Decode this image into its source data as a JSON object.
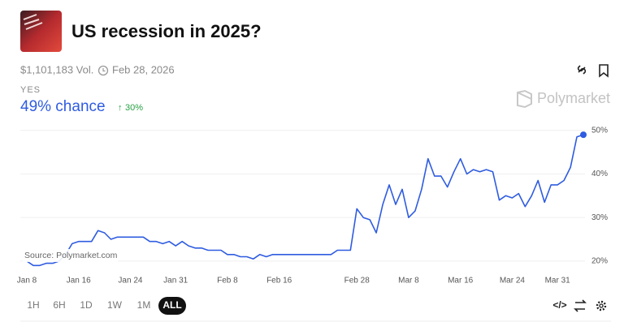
{
  "header": {
    "title": "US recession in 2025?",
    "volume": "$1,101,183 Vol.",
    "end_date": "Feb 28, 2026"
  },
  "outcome": {
    "label": "YES",
    "chance": "49% chance",
    "change": "30%"
  },
  "brand": "Polymarket",
  "source": "Source: Polymarket.com",
  "ranges": [
    "1H",
    "6H",
    "1D",
    "1W",
    "1M",
    "ALL"
  ],
  "chart_data": {
    "type": "line",
    "x": [
      "Jan 8",
      "Jan 9",
      "Jan 10",
      "Jan 11",
      "Jan 12",
      "Jan 13",
      "Jan 14",
      "Jan 15",
      "Jan 16",
      "Jan 17",
      "Jan 18",
      "Jan 19",
      "Jan 20",
      "Jan 21",
      "Jan 22",
      "Jan 23",
      "Jan 24",
      "Jan 25",
      "Jan 26",
      "Jan 27",
      "Jan 28",
      "Jan 29",
      "Jan 30",
      "Jan 31",
      "Feb 1",
      "Feb 2",
      "Feb 3",
      "Feb 4",
      "Feb 5",
      "Feb 6",
      "Feb 7",
      "Feb 8",
      "Feb 9",
      "Feb 10",
      "Feb 11",
      "Feb 12",
      "Feb 13",
      "Feb 14",
      "Feb 15",
      "Feb 16",
      "Feb 17",
      "Feb 18",
      "Feb 19",
      "Feb 20",
      "Feb 21",
      "Feb 22",
      "Feb 23",
      "Feb 24",
      "Feb 25",
      "Feb 26",
      "Feb 27",
      "Feb 28",
      "Mar 1",
      "Mar 2",
      "Mar 3",
      "Mar 4",
      "Mar 5",
      "Mar 6",
      "Mar 7",
      "Mar 8",
      "Mar 9",
      "Mar 10",
      "Mar 11",
      "Mar 12",
      "Mar 13",
      "Mar 14",
      "Mar 15",
      "Mar 16",
      "Mar 17",
      "Mar 18",
      "Mar 19",
      "Mar 20",
      "Mar 21",
      "Mar 22",
      "Mar 23",
      "Mar 24",
      "Mar 25",
      "Mar 26",
      "Mar 27",
      "Mar 28",
      "Mar 29",
      "Mar 30",
      "Mar 31",
      "Apr 1",
      "Apr 2",
      "Apr 3",
      "Apr 4"
    ],
    "series": [
      {
        "name": "YES",
        "color": "#2f5ce0",
        "values": [
          20,
          19,
          19,
          19.5,
          19.5,
          20,
          21.5,
          24,
          24.5,
          24.5,
          24.5,
          27,
          26.5,
          25,
          25.5,
          25.5,
          25.5,
          25.5,
          25.5,
          24.5,
          24.5,
          24,
          24.5,
          23.5,
          24.5,
          23.5,
          23,
          23,
          22.5,
          22.5,
          22.5,
          21.5,
          21.5,
          21,
          21,
          20.5,
          21.5,
          21,
          21.5,
          21.5,
          21.5,
          21.5,
          21.5,
          21.5,
          21.5,
          21.5,
          21.5,
          21.5,
          22.5,
          22.5,
          22.5,
          32,
          30,
          29.5,
          26.5,
          33,
          37.5,
          33,
          36.5,
          30,
          31.5,
          36.5,
          43.5,
          39.5,
          39.5,
          37,
          40.5,
          43.5,
          40,
          41,
          40.5,
          41,
          40.5,
          34,
          35,
          34.5,
          35.5,
          32.5,
          35,
          38.5,
          33.5,
          37.5,
          37.5,
          38.5,
          41.5,
          48.5,
          49
        ]
      }
    ],
    "xticks": [
      "Jan 8",
      "Jan 16",
      "Jan 24",
      "Jan 31",
      "Feb 8",
      "Feb 16",
      "Feb 28",
      "Mar 8",
      "Mar 16",
      "Mar 24",
      "Mar 31"
    ],
    "ylim": [
      17,
      52
    ],
    "yticks": [
      {
        "value": 20,
        "label": "20%"
      },
      {
        "value": 30,
        "label": "30%"
      },
      {
        "value": 40,
        "label": "40%"
      },
      {
        "value": 50,
        "label": "50%"
      }
    ],
    "grid": true
  }
}
